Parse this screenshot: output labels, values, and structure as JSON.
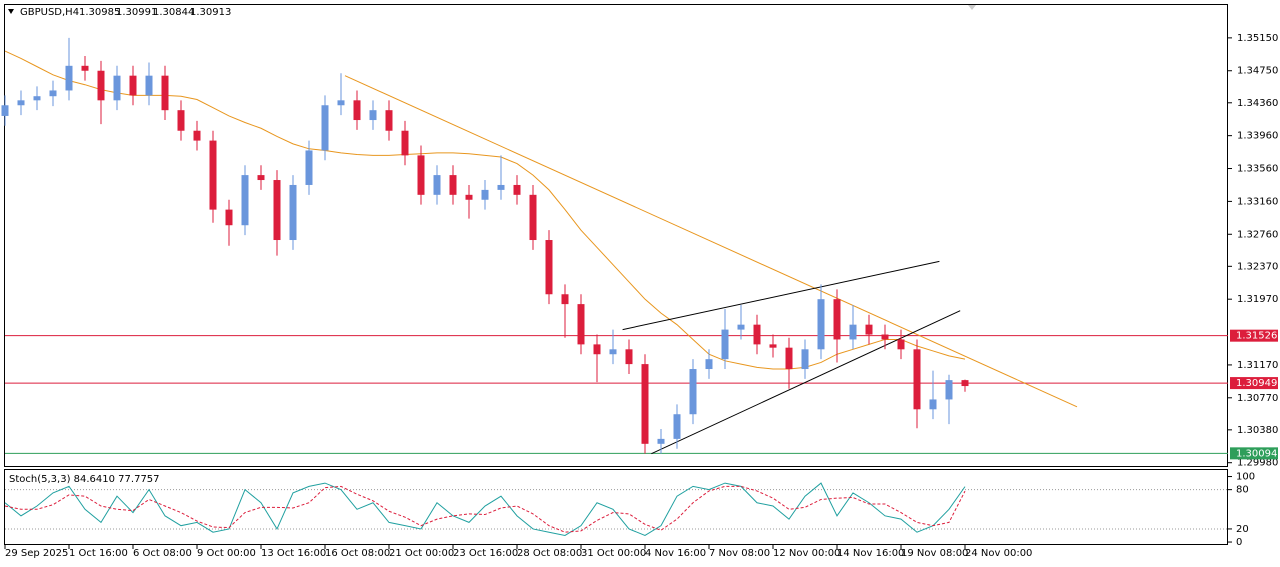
{
  "chart_data": {
    "type": "candlestick",
    "symbol": "GBPUSD,H4",
    "header_ohlc": [
      1.30985,
      1.30991,
      1.30844,
      1.30913
    ],
    "up_color": "#6a96dc",
    "down_color": "#dc1e3c",
    "categories": [
      "29 Sep 2025",
      null,
      null,
      null,
      "1 Oct 16:00",
      null,
      null,
      null,
      "6 Oct 08:00",
      null,
      null,
      null,
      "9 Oct 00:00",
      null,
      null,
      null,
      "13 Oct 16:00",
      null,
      null,
      null,
      "16 Oct 08:00",
      null,
      null,
      null,
      "21 Oct 00:00",
      null,
      null,
      null,
      "23 Oct 16:00",
      null,
      null,
      null,
      "28 Oct 08:00",
      null,
      null,
      null,
      "31 Oct 00:00",
      null,
      null,
      null,
      "4 Nov 16:00",
      null,
      null,
      null,
      "7 Nov 08:00",
      null,
      null,
      null,
      "12 Nov 00:00",
      null,
      null,
      null,
      "14 Nov 16:00",
      null,
      null,
      null,
      "19 Nov 08:00",
      null,
      null,
      null,
      "24 Nov 00:00"
    ],
    "open": [
      1.342,
      1.3433,
      1.3439,
      1.3444,
      1.3451,
      1.3481,
      1.3475,
      1.3439,
      1.3469,
      1.3445,
      1.3469,
      1.3427,
      1.3402,
      1.339,
      1.3306,
      1.3287,
      1.3348,
      1.3342,
      1.3269,
      1.3336,
      1.3378,
      1.3433,
      1.3439,
      1.3415,
      1.3427,
      1.3402,
      1.3372,
      1.3324,
      1.3348,
      1.3324,
      1.3318,
      1.333,
      1.3336,
      1.3324,
      1.3269,
      1.3203,
      1.3191,
      1.3142,
      1.313,
      1.3136,
      1.3118,
      1.3021,
      1.3027,
      1.3057,
      1.3112,
      1.3124,
      1.316,
      1.3166,
      1.3142,
      1.3138,
      1.3112,
      1.3136,
      1.3197,
      1.3148,
      1.3166,
      1.3154,
      1.3148,
      1.3136,
      1.3063,
      1.3075,
      1.30985
    ],
    "high": [
      1.3445,
      1.3451,
      1.3456,
      1.3463,
      1.3515,
      1.3493,
      1.3487,
      1.3481,
      1.3481,
      1.3485,
      1.3481,
      1.3439,
      1.3414,
      1.3402,
      1.3318,
      1.336,
      1.336,
      1.3354,
      1.3348,
      1.339,
      1.3445,
      1.3472,
      1.3451,
      1.3439,
      1.3439,
      1.3414,
      1.3384,
      1.336,
      1.336,
      1.3336,
      1.3342,
      1.3372,
      1.3348,
      1.3336,
      1.3281,
      1.3215,
      1.3203,
      1.3154,
      1.316,
      1.3148,
      1.313,
      1.3039,
      1.3069,
      1.3124,
      1.3136,
      1.3185,
      1.319,
      1.3178,
      1.3154,
      1.315,
      1.3148,
      1.3215,
      1.3209,
      1.319,
      1.3178,
      1.3166,
      1.316,
      1.3148,
      1.311,
      1.3105,
      1.30991
    ],
    "low": [
      1.3408,
      1.3421,
      1.3427,
      1.3432,
      1.3439,
      1.3463,
      1.341,
      1.3427,
      1.3433,
      1.3433,
      1.3415,
      1.339,
      1.3378,
      1.329,
      1.3262,
      1.3275,
      1.333,
      1.325,
      1.3257,
      1.3324,
      1.3366,
      1.3421,
      1.3403,
      1.3403,
      1.339,
      1.336,
      1.3312,
      1.3312,
      1.3312,
      1.3295,
      1.3306,
      1.3318,
      1.3312,
      1.3257,
      1.3191,
      1.315,
      1.313,
      1.3096,
      1.3118,
      1.3106,
      1.3009,
      1.3009,
      1.3015,
      1.3045,
      1.31,
      1.3112,
      1.3148,
      1.313,
      1.3126,
      1.3088,
      1.31,
      1.3124,
      1.312,
      1.3136,
      1.3142,
      1.3136,
      1.3124,
      1.304,
      1.3051,
      1.3045,
      1.30844
    ],
    "close": [
      1.3433,
      1.3439,
      1.3444,
      1.3451,
      1.3481,
      1.3475,
      1.3439,
      1.3469,
      1.3445,
      1.3469,
      1.3427,
      1.3402,
      1.339,
      1.3306,
      1.3287,
      1.3348,
      1.3342,
      1.3269,
      1.3336,
      1.3378,
      1.3433,
      1.3439,
      1.3415,
      1.3427,
      1.3402,
      1.3372,
      1.3324,
      1.3348,
      1.3324,
      1.3318,
      1.333,
      1.3336,
      1.3324,
      1.3269,
      1.3203,
      1.3191,
      1.3142,
      1.313,
      1.3136,
      1.3118,
      1.3021,
      1.3027,
      1.3057,
      1.3112,
      1.3124,
      1.316,
      1.3166,
      1.3142,
      1.3138,
      1.3112,
      1.3136,
      1.3197,
      1.3148,
      1.3166,
      1.3154,
      1.3148,
      1.3136,
      1.3063,
      1.3075,
      1.30985,
      1.30913
    ],
    "ma": {
      "color": "#e8961e",
      "values": [
        1.3499,
        1.349,
        1.348,
        1.347,
        1.3463,
        1.3458,
        1.3452,
        1.3448,
        1.3445,
        1.3445,
        1.3445,
        1.3444,
        1.344,
        1.343,
        1.342,
        1.3412,
        1.3405,
        1.3395,
        1.3386,
        1.338,
        1.3378,
        1.3375,
        1.3373,
        1.3372,
        1.3372,
        1.3373,
        1.3374,
        1.3375,
        1.3375,
        1.3374,
        1.3372,
        1.337,
        1.3362,
        1.3348,
        1.333,
        1.3306,
        1.3281,
        1.326,
        1.3239,
        1.3218,
        1.3197,
        1.318,
        1.3166,
        1.3148,
        1.313,
        1.3122,
        1.3118,
        1.3114,
        1.3112,
        1.3112,
        1.3114,
        1.312,
        1.313,
        1.3136,
        1.3142,
        1.3148,
        1.3148,
        1.314,
        1.3134,
        1.3128,
        1.3124
      ]
    },
    "trendlines": [
      {
        "color": "#e8961e",
        "x": [
          21.25,
          67
        ],
        "y": [
          1.3469,
          1.3066
        ]
      },
      {
        "color": "#000000",
        "x": [
          38.6,
          58.4
        ],
        "y": [
          1.316,
          1.3243
        ]
      },
      {
        "color": "#000000",
        "x": [
          40.4,
          59.7
        ],
        "y": [
          1.3009,
          1.3183
        ]
      }
    ],
    "levels": [
      {
        "value": 1.31526,
        "color": "#dc1e3c"
      },
      {
        "value": 1.30949,
        "color": "#dc1e3c"
      },
      {
        "value": 1.30094,
        "color": "#2e9e5a"
      }
    ],
    "ylim": [
      1.2994,
      1.3555
    ],
    "yticks": [
      {
        "value": 1.3515,
        "label": "1.35150"
      },
      {
        "value": 1.3475,
        "label": "1.34750"
      },
      {
        "value": 1.3436,
        "label": "1.34360"
      },
      {
        "value": 1.3396,
        "label": "1.33960"
      },
      {
        "value": 1.3356,
        "label": "1.33560"
      },
      {
        "value": 1.3316,
        "label": "1.33160"
      },
      {
        "value": 1.3276,
        "label": "1.32760"
      },
      {
        "value": 1.3237,
        "label": "1.32370"
      },
      {
        "value": 1.3197,
        "label": "1.31970"
      },
      {
        "value": 1.3117,
        "label": "1.31170"
      },
      {
        "value": 1.3077,
        "label": "1.30770"
      },
      {
        "value": 1.3038,
        "label": "1.30380"
      },
      {
        "value": 1.2998,
        "label": "1.29980"
      }
    ],
    "stoch": {
      "label": "Stoch(5,3,3) 84.6410 77.7757",
      "ylim": [
        -3,
        110
      ],
      "yticks": [
        100,
        80,
        20,
        0
      ],
      "main": {
        "color": "#20a0a0",
        "values": [
          60,
          40,
          55,
          75,
          85,
          50,
          30,
          70,
          45,
          80,
          40,
          25,
          30,
          15,
          20,
          80,
          60,
          20,
          75,
          85,
          90,
          80,
          50,
          60,
          30,
          25,
          20,
          60,
          40,
          30,
          55,
          70,
          40,
          20,
          15,
          10,
          25,
          60,
          50,
          20,
          10,
          25,
          70,
          85,
          80,
          90,
          85,
          60,
          55,
          35,
          70,
          90,
          40,
          75,
          60,
          40,
          35,
          15,
          25,
          50,
          84.641
        ]
      },
      "signal": {
        "color": "#dc1e3c",
        "values": [
          55,
          50,
          50,
          57,
          72,
          70,
          55,
          50,
          48,
          65,
          55,
          45,
          32,
          23,
          22,
          45,
          53,
          53,
          52,
          60,
          83,
          85,
          73,
          63,
          47,
          38,
          25,
          35,
          40,
          43,
          42,
          52,
          55,
          43,
          25,
          15,
          17,
          33,
          45,
          43,
          27,
          18,
          35,
          60,
          78,
          85,
          85,
          78,
          67,
          50,
          53,
          65,
          67,
          68,
          58,
          58,
          45,
          30,
          25,
          30,
          77.7757
        ]
      }
    }
  }
}
